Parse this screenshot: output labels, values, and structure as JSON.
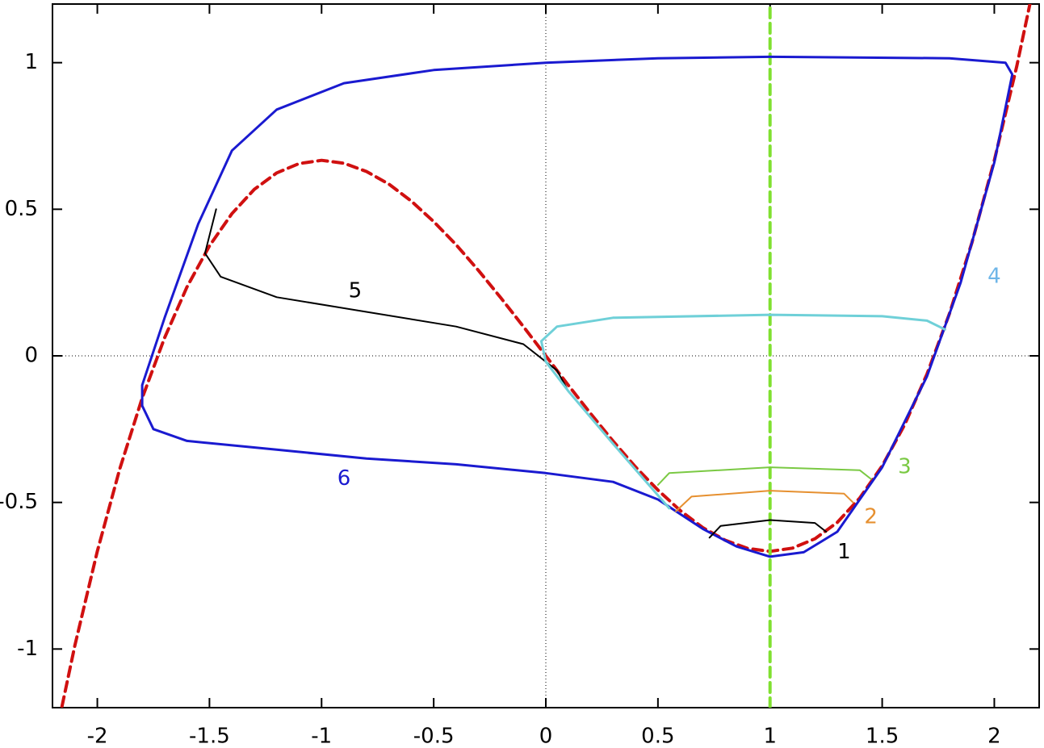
{
  "chart_data": {
    "type": "line",
    "xlim": [
      -2.2,
      2.2
    ],
    "ylim": [
      -1.2,
      1.2
    ],
    "xticks": [
      -2,
      -1.5,
      -1,
      -0.5,
      0,
      0.5,
      1,
      1.5,
      2
    ],
    "yticks": [
      -1,
      -0.5,
      0,
      0.5,
      1
    ],
    "zeroaxis": true,
    "series": [
      {
        "color": "#d01010",
        "style": "dashed",
        "x": [
          -2.2,
          -2.1,
          -2.0,
          -1.9,
          -1.8,
          -1.7,
          -1.6,
          -1.5,
          -1.4,
          -1.3,
          -1.2,
          -1.1,
          -1.0,
          -0.9,
          -0.8,
          -0.7,
          -0.6,
          -0.5,
          -0.4,
          -0.3,
          -0.2,
          -0.1,
          0,
          0.1,
          0.2,
          0.3,
          0.4,
          0.5,
          0.6,
          0.7,
          0.8,
          0.9,
          1.0,
          1.1,
          1.2,
          1.3,
          1.4,
          1.5,
          1.6,
          1.7,
          1.8,
          1.9,
          2.0,
          2.1,
          2.2
        ],
        "values": [
          -1.349,
          -0.987,
          -0.667,
          -0.386,
          -0.144,
          0.062,
          0.235,
          0.375,
          0.485,
          0.568,
          0.624,
          0.656,
          0.667,
          0.657,
          0.629,
          0.586,
          0.528,
          0.458,
          0.379,
          0.291,
          0.197,
          0.1,
          0,
          -0.1,
          -0.197,
          -0.291,
          -0.379,
          -0.458,
          -0.528,
          -0.586,
          -0.629,
          -0.657,
          -0.667,
          -0.656,
          -0.624,
          -0.568,
          -0.485,
          -0.375,
          -0.235,
          -0.062,
          0.144,
          0.386,
          0.667,
          0.987,
          1.349
        ]
      },
      {
        "color": "#80e030",
        "style": "dashed",
        "x": [
          1,
          1
        ],
        "values": [
          -1.2,
          1.2
        ]
      },
      {
        "name": "6",
        "color": "#1a1ad0",
        "style": "solid",
        "x": [
          -1.8,
          -1.75,
          -1.6,
          -1.2,
          -0.8,
          -0.4,
          0,
          0.3,
          0.5,
          0.7,
          0.85,
          1.0,
          1.15,
          1.3,
          1.5,
          1.7,
          1.85,
          2.0,
          2.08,
          2.05,
          1.8,
          1.0,
          0.5,
          0,
          -0.5,
          -0.9,
          -1.2,
          -1.4,
          -1.55,
          -1.7,
          -1.8,
          -1.8
        ],
        "values": [
          -0.17,
          -0.25,
          -0.29,
          -0.32,
          -0.35,
          -0.37,
          -0.4,
          -0.43,
          -0.49,
          -0.59,
          -0.65,
          -0.685,
          -0.67,
          -0.6,
          -0.38,
          -0.07,
          0.25,
          0.66,
          0.96,
          1.0,
          1.015,
          1.02,
          1.015,
          1.0,
          0.975,
          0.93,
          0.84,
          0.7,
          0.45,
          0.13,
          -0.1,
          -0.17
        ]
      },
      {
        "name": "5",
        "color": "#000000",
        "style": "thin",
        "x": [
          -1.47,
          -1.52,
          -1.45,
          -1.2,
          -0.8,
          -0.4,
          -0.1,
          0.05,
          0.1
        ],
        "values": [
          0.5,
          0.35,
          0.27,
          0.2,
          0.15,
          0.1,
          0.04,
          -0.05,
          -0.12
        ]
      },
      {
        "name": "4",
        "color": "#6fd0d8",
        "labelcolor": "#6fb6e8",
        "style": "solid",
        "x": [
          0.55,
          0.3,
          0.1,
          0,
          -0.02,
          0.05,
          0.3,
          1,
          1.5,
          1.7,
          1.78
        ],
        "values": [
          -0.52,
          -0.3,
          -0.12,
          -0.02,
          0.05,
          0.1,
          0.13,
          0.14,
          0.135,
          0.12,
          0.09
        ]
      },
      {
        "name": "3",
        "color": "#7ac943",
        "style": "thin",
        "x": [
          0.5,
          0.55,
          1,
          1.4,
          1.45
        ],
        "values": [
          -0.44,
          -0.4,
          -0.38,
          -0.39,
          -0.42
        ]
      },
      {
        "name": "2",
        "color": "#e69030",
        "style": "thin",
        "x": [
          0.58,
          0.65,
          1,
          1.33,
          1.37
        ],
        "values": [
          -0.53,
          -0.48,
          -0.46,
          -0.47,
          -0.5
        ]
      },
      {
        "name": "1",
        "color": "#000000",
        "style": "thin",
        "x": [
          0.73,
          0.78,
          1,
          1.2,
          1.25
        ],
        "values": [
          -0.62,
          -0.58,
          -0.56,
          -0.57,
          -0.6
        ]
      }
    ]
  }
}
